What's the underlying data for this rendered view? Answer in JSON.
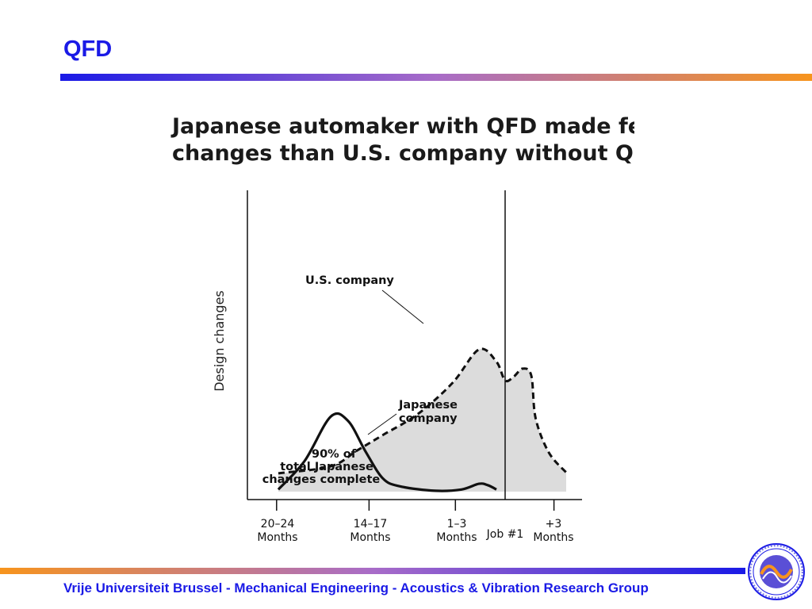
{
  "slide": {
    "title": "QFD",
    "footer": "Vrije Universiteit Brussel - Mechanical Engineering - Acoustics & Vibration Research Group",
    "logo_icon": "university-seal-icon",
    "colors": {
      "title": "#1a1ae6",
      "bar_start": "#1a1ae6",
      "bar_end": "#f7941d"
    }
  },
  "chart_data": {
    "type": "area",
    "title_lines": [
      "Japanese automaker with QFD made fewer",
      "changes than U.S. company without QFD"
    ],
    "ylabel": "Design changes",
    "xlabel": "",
    "x_ticks": [
      {
        "line1": "20–24",
        "line2": "Months"
      },
      {
        "line1": "14–17",
        "line2": "Months"
      },
      {
        "line1": "1–3",
        "line2": "Months"
      },
      {
        "line1": "Job #1",
        "line2": ""
      },
      {
        "line1": "+3",
        "line2": "Months"
      }
    ],
    "annotations": {
      "us": [
        "U.S. company"
      ],
      "japan": [
        "Japanese",
        "company"
      ],
      "ninety": [
        "90% of",
        "total Japanese",
        "changes complete"
      ]
    },
    "series": [
      {
        "name": "U.S. company",
        "style": "dashed",
        "fill": "#dcdcdc",
        "x": [
          -26,
          -20,
          -17,
          -14,
          -10,
          -6,
          -3,
          -1,
          0,
          1,
          2,
          3,
          3.5,
          5,
          7
        ],
        "y": [
          0.42,
          0.58,
          0.94,
          1.3,
          1.78,
          2.5,
          3.26,
          2.98,
          2.55,
          2.64,
          2.82,
          2.66,
          1.68,
          0.9,
          0.44
        ]
      },
      {
        "name": "Japanese company",
        "style": "solid",
        "x": [
          -26,
          -23,
          -20,
          -18,
          -16,
          -14,
          -12,
          -8,
          -5,
          -3,
          -2,
          -1
        ],
        "y": [
          0.05,
          0.7,
          1.72,
          1.62,
          0.92,
          0.3,
          0.12,
          0.02,
          0.05,
          0.18,
          0.15,
          0.05
        ]
      }
    ],
    "xlim": [
      -28,
      8
    ],
    "ylim": [
      0,
      4
    ],
    "job1_x": 0,
    "grid": false,
    "legend": "none"
  }
}
